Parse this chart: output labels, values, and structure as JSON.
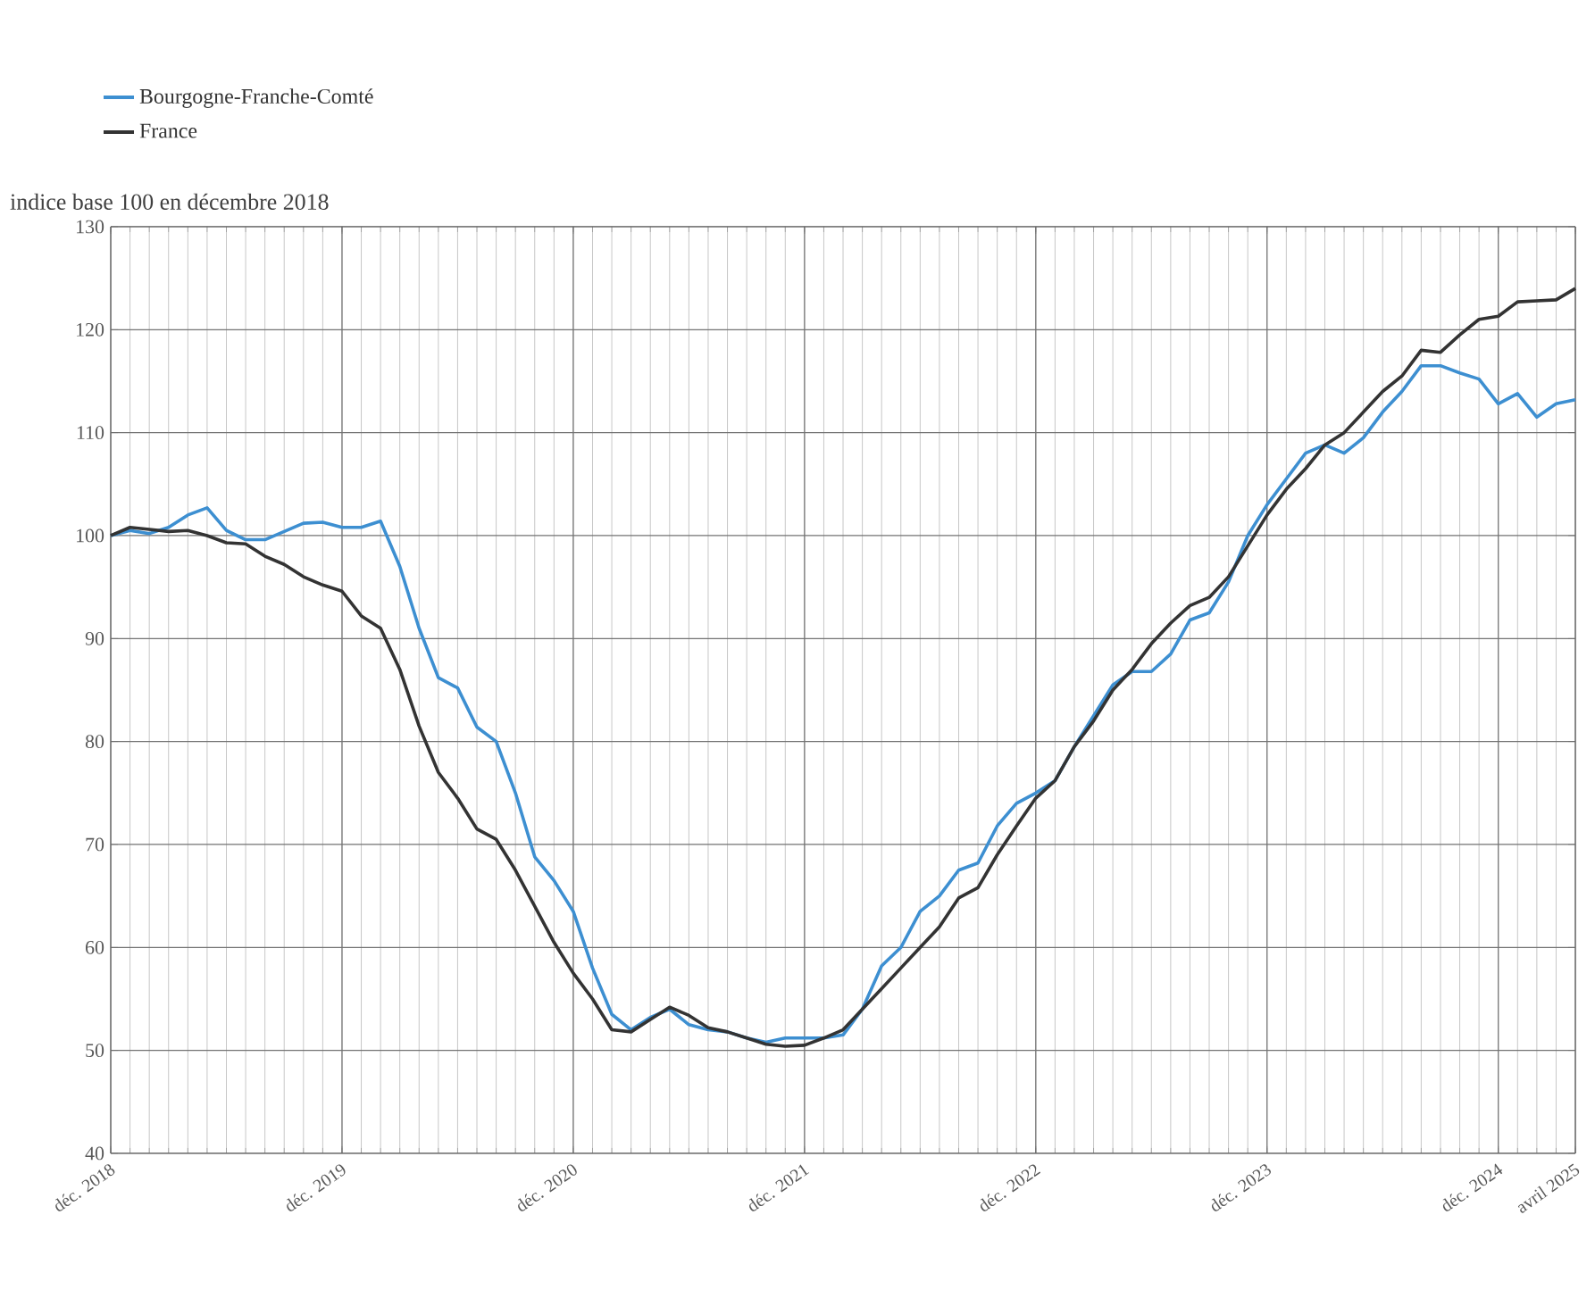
{
  "chart_data": {
    "type": "line",
    "ylabel": "indice base 100 en décembre 2018",
    "categories": [
      "déc. 2018",
      null,
      null,
      null,
      null,
      null,
      null,
      null,
      null,
      null,
      null,
      null,
      "déc. 2019",
      null,
      null,
      null,
      null,
      null,
      null,
      null,
      null,
      null,
      null,
      null,
      "déc. 2020",
      null,
      null,
      null,
      null,
      null,
      null,
      null,
      null,
      null,
      null,
      null,
      "déc. 2021",
      null,
      null,
      null,
      null,
      null,
      null,
      null,
      null,
      null,
      null,
      null,
      "déc. 2022",
      null,
      null,
      null,
      null,
      null,
      null,
      null,
      null,
      null,
      null,
      null,
      "déc. 2023",
      null,
      null,
      null,
      null,
      null,
      null,
      null,
      null,
      null,
      null,
      null,
      "déc. 2024",
      null,
      null,
      null,
      "avril 2025"
    ],
    "series": [
      {
        "name": "Bourgogne-Franche-Comté",
        "color": "#3d8fd1",
        "values": [
          100,
          100.5,
          100.2,
          100.8,
          102,
          102.7,
          100.5,
          99.6,
          99.6,
          100.4,
          101.2,
          101.3,
          100.8,
          100.8,
          101.4,
          97,
          91,
          86.2,
          85.2,
          81.4,
          80,
          75,
          68.8,
          66.5,
          63.5,
          58,
          53.5,
          52,
          53.2,
          54,
          52.5,
          52,
          51.8,
          51.2,
          50.8,
          51.2,
          51.2,
          51.2,
          51.5,
          54,
          58.2,
          60,
          63.5,
          65,
          67.5,
          68.2,
          71.8,
          74,
          75,
          76.2,
          79.5,
          82.5,
          85.5,
          86.8,
          86.8,
          88.5,
          91.8,
          92.5,
          95.5,
          100,
          103,
          105.5,
          108,
          108.8,
          108,
          109.5,
          112,
          114,
          116.5,
          116.5,
          115.8,
          115.2,
          112.8,
          113.8,
          111.5,
          112.8,
          113.2
        ]
      },
      {
        "name": "France",
        "color": "#333333",
        "values": [
          100,
          100.8,
          100.6,
          100.4,
          100.5,
          100.0,
          99.3,
          99.2,
          98.0,
          97.2,
          96.0,
          95.2,
          94.6,
          92.2,
          91.0,
          87,
          81.5,
          77,
          74.5,
          71.5,
          70.5,
          67.5,
          64,
          60.5,
          57.5,
          55,
          52,
          51.8,
          53,
          54.2,
          53.4,
          52.2,
          51.8,
          51.2,
          50.6,
          50.4,
          50.5,
          51.2,
          52,
          54,
          56,
          58,
          60,
          62,
          64.8,
          65.8,
          69,
          71.8,
          74.5,
          76.2,
          79.5,
          82,
          85,
          87,
          89.5,
          91.5,
          93.2,
          94,
          96,
          99,
          102,
          104.5,
          106.5,
          108.8,
          110,
          112,
          114,
          115.5,
          118,
          117.8,
          119.5,
          121,
          121.3,
          122.7,
          122.8,
          122.9,
          124
        ]
      }
    ],
    "ylim": [
      40,
      130
    ],
    "yticks": [
      40,
      50,
      60,
      70,
      80,
      90,
      100,
      110,
      120,
      130
    ],
    "grid": true,
    "legend": "top left",
    "marker": "none",
    "line_style": "solid"
  }
}
